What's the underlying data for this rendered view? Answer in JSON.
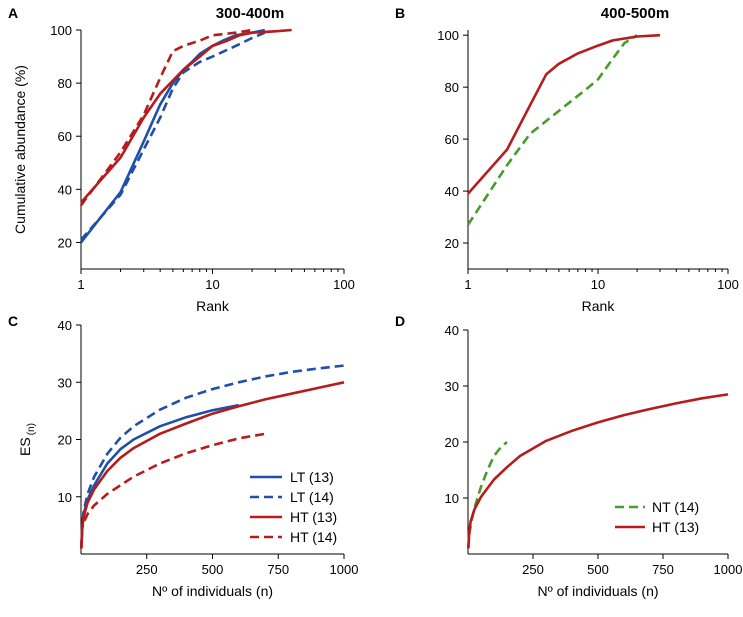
{
  "chart_data": [
    {
      "id": "A",
      "panel_label": "A",
      "type": "line",
      "title": "300-400m",
      "xlabel": "Rank",
      "ylabel": "Cumulative abundance (%)",
      "xscale": "log",
      "xlim": [
        1,
        100
      ],
      "ylim": [
        10,
        100
      ],
      "xticks": [
        1,
        10,
        100
      ],
      "xtick_labels": [
        "1",
        "10",
        "100"
      ],
      "yticks": [
        20,
        40,
        60,
        80,
        100
      ],
      "ytick_labels": [
        "20",
        "40",
        "60",
        "80",
        "100"
      ],
      "series": [
        {
          "name": "LT (13)",
          "color": "#1f4fa8",
          "dashed": false,
          "x": [
            1,
            2,
            3,
            4,
            5,
            6,
            7,
            8,
            10,
            12,
            15,
            20,
            25
          ],
          "y": [
            20,
            39,
            58,
            72,
            80,
            85,
            88,
            91,
            94,
            96,
            98,
            99,
            100
          ]
        },
        {
          "name": "LT (14)",
          "color": "#1f4fa8",
          "dashed": true,
          "x": [
            1,
            2,
            3,
            4,
            5,
            6,
            8,
            10,
            15,
            20,
            25
          ],
          "y": [
            21,
            38,
            55,
            67,
            78,
            84,
            88,
            90,
            94,
            97,
            99
          ]
        },
        {
          "name": "HT (13)",
          "color": "#b71c1c",
          "dashed": false,
          "x": [
            1,
            2,
            3,
            4,
            5,
            6,
            8,
            10,
            13,
            16,
            20,
            30,
            40
          ],
          "y": [
            35,
            52,
            67,
            76,
            81,
            85,
            90,
            94,
            96,
            98,
            99,
            99.5,
            100
          ]
        },
        {
          "name": "HT (14)",
          "color": "#b71c1c",
          "dashed": true,
          "x": [
            1,
            2,
            3,
            4,
            5,
            6,
            8,
            10,
            15,
            20
          ],
          "y": [
            34,
            54,
            68,
            82,
            92,
            94,
            96,
            98,
            99,
            100
          ]
        }
      ]
    },
    {
      "id": "B",
      "panel_label": "B",
      "type": "line",
      "title": "400-500m",
      "xlabel": "Rank",
      "ylabel": "",
      "xscale": "log",
      "xlim": [
        1,
        100
      ],
      "ylim": [
        10,
        102
      ],
      "xticks": [
        1,
        10,
        100
      ],
      "xtick_labels": [
        "1",
        "10",
        "100"
      ],
      "yticks": [
        20,
        40,
        60,
        80,
        100
      ],
      "ytick_labels": [
        "20",
        "40",
        "60",
        "80",
        "100"
      ],
      "series": [
        {
          "name": "NT (14)",
          "color": "#4a9a2c",
          "dashed": true,
          "x": [
            1,
            2,
            3,
            4,
            6,
            8,
            10,
            13,
            16,
            20
          ],
          "y": [
            27,
            50,
            62,
            67,
            74,
            79,
            83,
            91,
            97,
            100
          ]
        },
        {
          "name": "HT (13)",
          "color": "#b71c1c",
          "dashed": false,
          "x": [
            1,
            2,
            3,
            4,
            5,
            7,
            10,
            13,
            20,
            30
          ],
          "y": [
            39,
            56,
            73,
            85,
            89,
            93,
            96,
            98,
            99.5,
            100
          ]
        }
      ]
    },
    {
      "id": "C",
      "panel_label": "C",
      "type": "line",
      "title": "",
      "xlabel": "Nº of individuals (n)",
      "ylabel": "ES",
      "ylabel_sub": "(n)",
      "xscale": "linear",
      "xlim": [
        0,
        1000
      ],
      "ylim": [
        0,
        40
      ],
      "xticks": [
        250,
        500,
        750,
        1000
      ],
      "xtick_labels": [
        "250",
        "500",
        "750",
        "1000"
      ],
      "yticks": [
        10,
        20,
        30,
        40
      ],
      "ytick_labels": [
        "10",
        "20",
        "30",
        "40"
      ],
      "legend": {
        "position": "bottom-right",
        "entries": [
          "LT (13)",
          "LT (14)",
          "HT (13)",
          "HT (14)"
        ]
      },
      "series": [
        {
          "name": "LT (13)",
          "color": "#1f4fa8",
          "dashed": false,
          "n_max": 600,
          "x": [
            1,
            5,
            10,
            25,
            50,
            100,
            150,
            200,
            300,
            400,
            500,
            600
          ],
          "y": [
            1,
            5,
            7,
            9.5,
            12,
            15.8,
            18.3,
            20,
            22.3,
            23.9,
            25.1,
            26
          ]
        },
        {
          "name": "LT (14)",
          "color": "#1f4fa8",
          "dashed": true,
          "n_max": 1000,
          "x": [
            1,
            5,
            10,
            25,
            50,
            100,
            150,
            200,
            300,
            400,
            500,
            600,
            700,
            800,
            900,
            1000
          ],
          "y": [
            1,
            5,
            7.5,
            10.5,
            13.5,
            17.5,
            20.3,
            22.3,
            25.2,
            27.3,
            28.8,
            30,
            31,
            31.8,
            32.4,
            32.9
          ]
        },
        {
          "name": "HT (13)",
          "color": "#b71c1c",
          "dashed": false,
          "n_max": 1000,
          "x": [
            1,
            5,
            10,
            25,
            50,
            100,
            150,
            200,
            300,
            400,
            500,
            600,
            700,
            800,
            900,
            1000
          ],
          "y": [
            1,
            4.5,
            6.5,
            9,
            11.3,
            14.5,
            16.8,
            18.5,
            21,
            22.8,
            24.5,
            25.8,
            27,
            28,
            29,
            30
          ]
        },
        {
          "name": "HT (14)",
          "color": "#b71c1c",
          "dashed": true,
          "n_max": 700,
          "x": [
            1,
            5,
            10,
            25,
            50,
            100,
            150,
            200,
            300,
            400,
            500,
            600,
            700
          ],
          "y": [
            1,
            4.5,
            5.5,
            7,
            8.5,
            10.5,
            12,
            13.5,
            15.8,
            17.6,
            19,
            20.2,
            21
          ]
        }
      ]
    },
    {
      "id": "D",
      "panel_label": "D",
      "type": "line",
      "title": "",
      "xlabel": "Nº of individuals (n)",
      "ylabel": "",
      "xscale": "linear",
      "xlim": [
        0,
        1000
      ],
      "ylim": [
        0,
        40
      ],
      "xticks": [
        250,
        500,
        750,
        1000
      ],
      "xtick_labels": [
        "250",
        "500",
        "750",
        "1000"
      ],
      "yticks": [
        10,
        20,
        30,
        40
      ],
      "ytick_labels": [
        "10",
        "20",
        "30",
        "40"
      ],
      "legend": {
        "position": "bottom-right",
        "entries": [
          "NT (14)",
          "HT (13)"
        ]
      },
      "series": [
        {
          "name": "NT (14)",
          "color": "#4a9a2c",
          "dashed": true,
          "n_max": 150,
          "x": [
            1,
            5,
            10,
            20,
            30,
            50,
            75,
            100,
            125,
            150
          ],
          "y": [
            1,
            3.5,
            5,
            7.3,
            9,
            12,
            15,
            17.5,
            19,
            20
          ]
        },
        {
          "name": "HT (13)",
          "color": "#b71c1c",
          "dashed": false,
          "n_max": 1000,
          "x": [
            1,
            5,
            10,
            25,
            50,
            100,
            150,
            200,
            300,
            400,
            500,
            600,
            700,
            800,
            900,
            1000
          ],
          "y": [
            1,
            4,
            5.8,
            8,
            10.2,
            13.3,
            15.5,
            17.5,
            20.2,
            22,
            23.5,
            24.8,
            25.9,
            26.9,
            27.8,
            28.5
          ]
        }
      ]
    }
  ]
}
